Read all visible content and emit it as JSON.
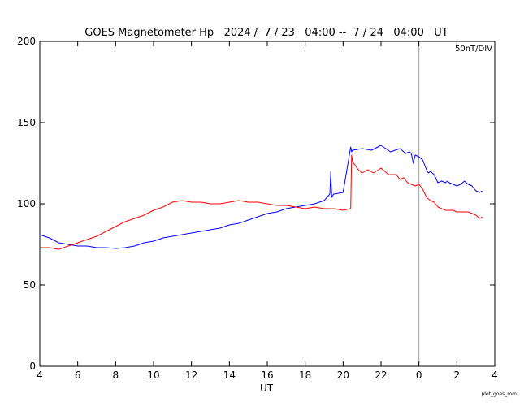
{
  "chart_data": {
    "type": "line",
    "title": "GOES Magnetometer Hp   2024 /  7 / 23   04:00 --  7 / 24   04:00   UT",
    "xlabel": "UT",
    "ylabel": "",
    "scale_note": "50nT/DIV",
    "footer_note": "plot_goes_mm",
    "x_unit": "hours since 2024-07-23 04:00 UT",
    "xlim": [
      0,
      24
    ],
    "ylim": [
      0,
      200
    ],
    "x_ticks": [
      0,
      2,
      4,
      6,
      8,
      10,
      12,
      14,
      16,
      18,
      20,
      22,
      24
    ],
    "x_tick_labels": [
      "4",
      "6",
      "8",
      "10",
      "12",
      "14",
      "16",
      "18",
      "20",
      "22",
      "0",
      "2",
      "4"
    ],
    "y_ticks": [
      0,
      50,
      100,
      150,
      200
    ],
    "y_tick_labels": [
      "0",
      "50",
      "100",
      "150",
      "200"
    ],
    "grid": false,
    "reference_line": {
      "x": 20,
      "label": "0",
      "color": "#a0a0a0"
    },
    "series": [
      {
        "color": "#0000ff",
        "x": [
          0,
          0.5,
          1,
          1.5,
          2,
          2.5,
          3,
          3.5,
          4,
          4.5,
          5,
          5.5,
          6,
          6.5,
          7,
          7.5,
          8,
          8.5,
          9,
          9.5,
          10,
          10.5,
          11,
          11.5,
          12,
          12.5,
          13,
          13.5,
          14,
          14.5,
          15,
          15.3,
          15.35,
          15.4,
          15.45,
          15.5,
          16,
          16.4,
          16.45,
          16.5,
          17,
          17.5,
          18,
          18.5,
          19,
          19.3,
          19.5,
          19.6,
          19.7,
          19.8,
          20,
          20.2,
          20.4,
          20.5,
          20.6,
          20.8,
          21,
          21.2,
          21.4,
          21.5,
          21.6,
          21.8,
          22,
          22.2,
          22.4,
          22.6,
          22.8,
          23,
          23.2,
          23.35
        ],
        "y": [
          81,
          79,
          76,
          75,
          74,
          74,
          73,
          73,
          72.5,
          73,
          74,
          76,
          77,
          79,
          80,
          81,
          82,
          83,
          84,
          85,
          87,
          88,
          90,
          92,
          94,
          95,
          97,
          98,
          99,
          100,
          102,
          106,
          120,
          104,
          105,
          106,
          107,
          135,
          132,
          133,
          134,
          133,
          136,
          132,
          134,
          131,
          132,
          131,
          125,
          130,
          129,
          127,
          121,
          119,
          120,
          118,
          113,
          114,
          113,
          114,
          113,
          112,
          111,
          112,
          114,
          112,
          111,
          108,
          107,
          108
        ]
      },
      {
        "color": "#ff0000",
        "x": [
          0,
          0.5,
          1,
          1.5,
          2,
          2.5,
          3,
          3.5,
          4,
          4.5,
          5,
          5.5,
          6,
          6.5,
          7,
          7.5,
          8,
          8.5,
          9,
          9.5,
          10,
          10.5,
          11,
          11.5,
          12,
          12.5,
          13,
          13.5,
          14,
          14.5,
          15,
          15.5,
          16,
          16.4,
          16.45,
          16.5,
          16.8,
          17,
          17.3,
          17.6,
          18,
          18.4,
          18.8,
          19,
          19.2,
          19.4,
          19.6,
          19.8,
          20,
          20.2,
          20.4,
          20.6,
          20.8,
          21,
          21.2,
          21.4,
          21.6,
          21.8,
          22,
          22.2,
          22.4,
          22.6,
          22.8,
          23,
          23.2,
          23.35
        ],
        "y": [
          73,
          73,
          72,
          74,
          76,
          78,
          80,
          83,
          86,
          89,
          91,
          93,
          96,
          98,
          101,
          102,
          101,
          101,
          100,
          100,
          101,
          102,
          101,
          101,
          100,
          99,
          99,
          98,
          97,
          98,
          97,
          97,
          96,
          97,
          130,
          126,
          121,
          119,
          121,
          119,
          122,
          118,
          118,
          115,
          116,
          113,
          112,
          111,
          112,
          109,
          104,
          102,
          101,
          98,
          97,
          96,
          96,
          96,
          95,
          95,
          95,
          95,
          94,
          93,
          91,
          92
        ]
      }
    ]
  }
}
